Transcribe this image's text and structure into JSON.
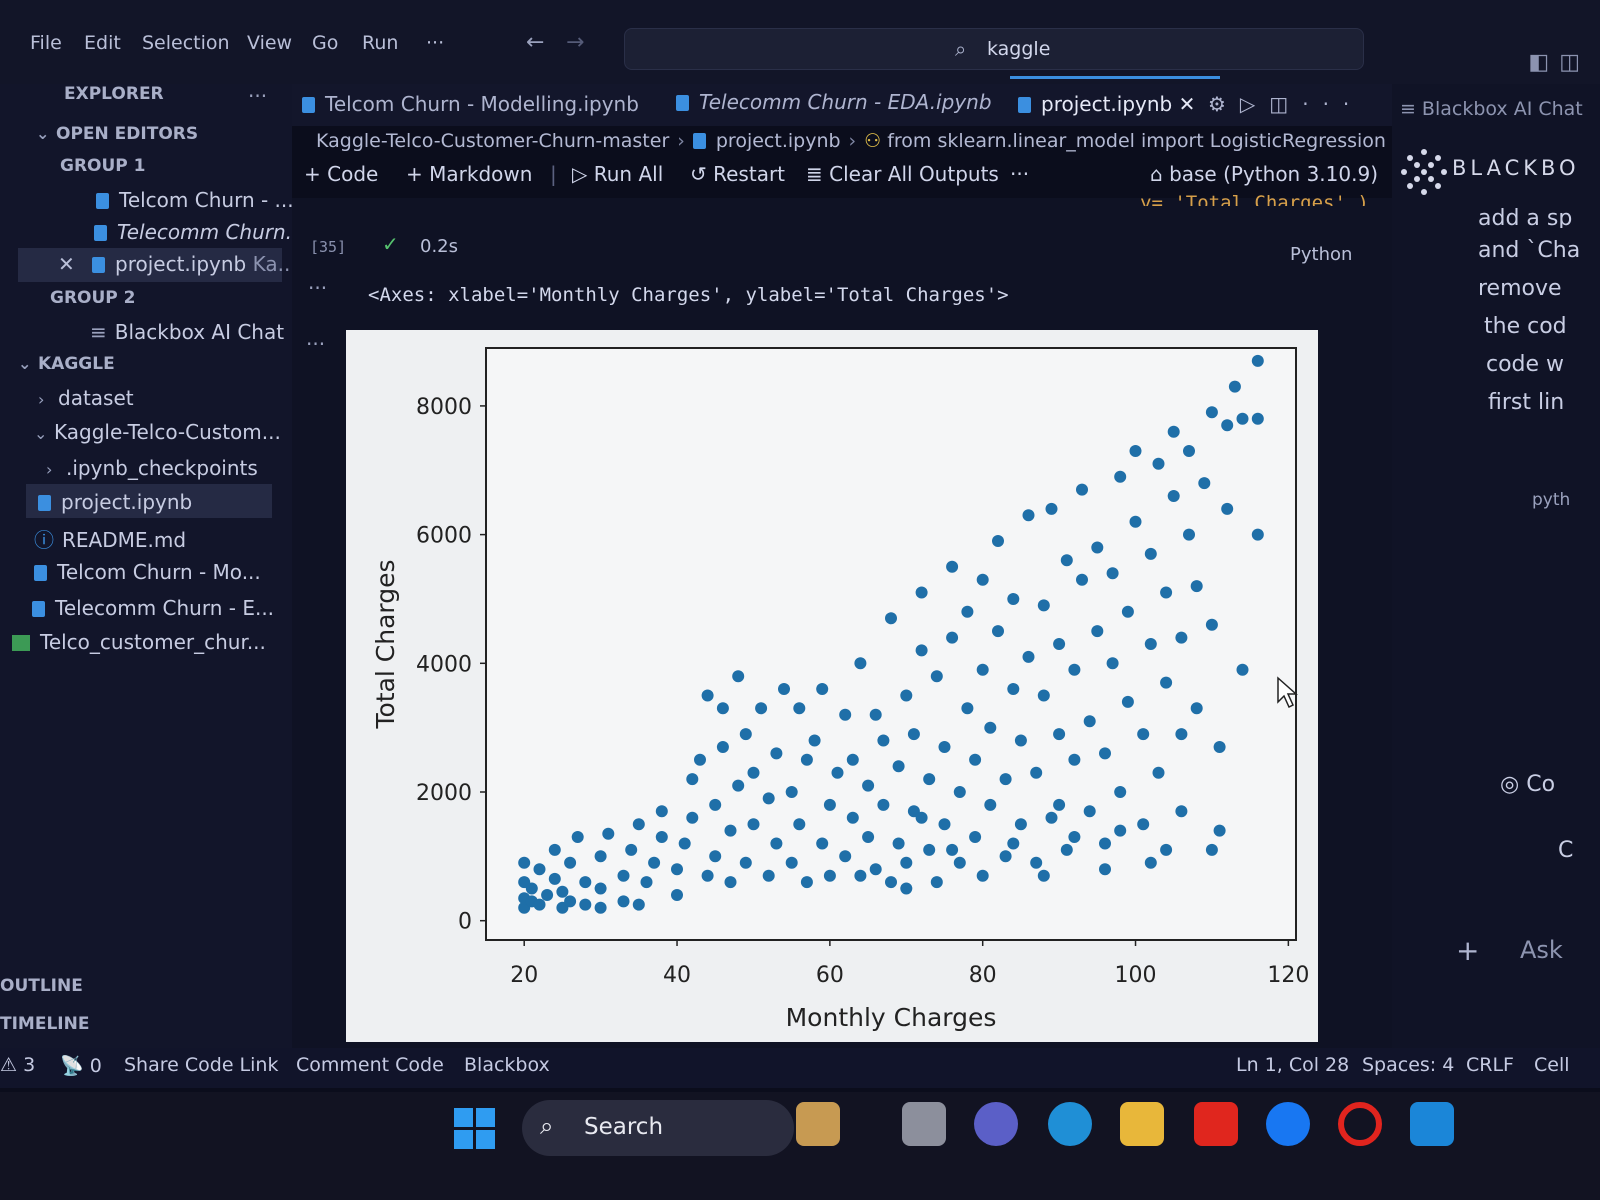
{
  "menu": [
    "File",
    "Edit",
    "Selection",
    "View",
    "Go",
    "Run",
    "···"
  ],
  "command_center": {
    "search_value": "kaggle"
  },
  "sidebar": {
    "title": "EXPLORER",
    "open_editors_label": "OPEN EDITORS",
    "group1_label": "GROUP 1",
    "group1_items": [
      "Telcom Churn - ...",
      "Telecomm Churn...",
      "project.ipynb",
      "Ka..."
    ],
    "group2_label": "GROUP 2",
    "group2_items": [
      "Blackbox AI Chat"
    ],
    "kaggle_label": "KAGGLE",
    "tree": [
      "dataset",
      "Kaggle-Telco-Custom...",
      ".ipynb_checkpoints",
      "project.ipynb",
      "README.md",
      "Telcom Churn - Mo...",
      "Telecomm Churn - E...",
      "Telco_customer_chur..."
    ],
    "outline_label": "OUTLINE",
    "timeline_label": "TIMELINE"
  },
  "tabs": [
    "Telcom Churn - Modelling.ipynb",
    "Telecomm Churn - EDA.ipynb",
    "project.ipynb"
  ],
  "breadcrumb": [
    "Kaggle-Telco-Customer-Churn-master",
    "project.ipynb",
    "from sklearn.linear_model import LogisticRegression"
  ],
  "toolbar": {
    "code": "Code",
    "markdown": "Markdown",
    "run_all": "Run All",
    "restart": "Restart",
    "clear_outputs": "Clear All Outputs",
    "more": "···",
    "kernel": "base (Python 3.10.9)"
  },
  "cell": {
    "count": "[35]",
    "time": "0.2s",
    "language": "Python",
    "output_repr": "<Axes: xlabel='Monthly Charges', ylabel='Total Charges'>",
    "truncated_code": "y= 'Total Charges' )"
  },
  "chart_data": {
    "type": "scatter",
    "xlabel": "Monthly Charges",
    "ylabel": "Total Charges",
    "xlim": [
      15,
      121
    ],
    "ylim": [
      -300,
      8900
    ],
    "xticks": [
      20,
      40,
      60,
      80,
      100,
      120
    ],
    "yticks": [
      0,
      2000,
      4000,
      6000,
      8000
    ],
    "color": "#1f6fa8",
    "points": [
      [
        20,
        200
      ],
      [
        20,
        350
      ],
      [
        20,
        600
      ],
      [
        20,
        900
      ],
      [
        21,
        300
      ],
      [
        21,
        500
      ],
      [
        22,
        250
      ],
      [
        22,
        800
      ],
      [
        23,
        400
      ],
      [
        24,
        650
      ],
      [
        24,
        1100
      ],
      [
        25,
        200
      ],
      [
        25,
        450
      ],
      [
        26,
        300
      ],
      [
        26,
        900
      ],
      [
        27,
        1300
      ],
      [
        28,
        250
      ],
      [
        28,
        600
      ],
      [
        30,
        200
      ],
      [
        30,
        500
      ],
      [
        30,
        1000
      ],
      [
        31,
        1350
      ],
      [
        33,
        300
      ],
      [
        33,
        700
      ],
      [
        34,
        1100
      ],
      [
        35,
        1500
      ],
      [
        35,
        250
      ],
      [
        36,
        600
      ],
      [
        37,
        900
      ],
      [
        38,
        1300
      ],
      [
        38,
        1700
      ],
      [
        40,
        400
      ],
      [
        40,
        800
      ],
      [
        41,
        1200
      ],
      [
        42,
        1600
      ],
      [
        42,
        2200
      ],
      [
        43,
        2500
      ],
      [
        44,
        700
      ],
      [
        44,
        3500
      ],
      [
        45,
        1000
      ],
      [
        45,
        1800
      ],
      [
        46,
        2700
      ],
      [
        46,
        3300
      ],
      [
        47,
        1400
      ],
      [
        47,
        600
      ],
      [
        48,
        2100
      ],
      [
        48,
        3800
      ],
      [
        49,
        900
      ],
      [
        49,
        2900
      ],
      [
        50,
        1500
      ],
      [
        50,
        2300
      ],
      [
        51,
        3300
      ],
      [
        52,
        700
      ],
      [
        52,
        1900
      ],
      [
        53,
        2600
      ],
      [
        53,
        1200
      ],
      [
        54,
        3600
      ],
      [
        55,
        2000
      ],
      [
        55,
        900
      ],
      [
        56,
        3300
      ],
      [
        56,
        1500
      ],
      [
        57,
        2500
      ],
      [
        57,
        600
      ],
      [
        58,
        2800
      ],
      [
        59,
        1200
      ],
      [
        59,
        3600
      ],
      [
        60,
        1800
      ],
      [
        60,
        700
      ],
      [
        61,
        2300
      ],
      [
        62,
        3200
      ],
      [
        62,
        1000
      ],
      [
        63,
        1600
      ],
      [
        63,
        2500
      ],
      [
        64,
        4000
      ],
      [
        64,
        700
      ],
      [
        65,
        1300
      ],
      [
        65,
        2100
      ],
      [
        66,
        3200
      ],
      [
        66,
        800
      ],
      [
        67,
        1800
      ],
      [
        67,
        2800
      ],
      [
        68,
        4700
      ],
      [
        68,
        600
      ],
      [
        69,
        1200
      ],
      [
        69,
        2400
      ],
      [
        70,
        3500
      ],
      [
        70,
        900
      ],
      [
        71,
        1700
      ],
      [
        71,
        2900
      ],
      [
        72,
        4200
      ],
      [
        72,
        5100
      ],
      [
        73,
        1100
      ],
      [
        73,
        2200
      ],
      [
        74,
        3800
      ],
      [
        74,
        600
      ],
      [
        75,
        1500
      ],
      [
        75,
        2700
      ],
      [
        76,
        4400
      ],
      [
        76,
        5500
      ],
      [
        77,
        900
      ],
      [
        77,
        2000
      ],
      [
        78,
        3300
      ],
      [
        78,
        4800
      ],
      [
        79,
        1300
      ],
      [
        79,
        2500
      ],
      [
        80,
        3900
      ],
      [
        80,
        5300
      ],
      [
        80,
        700
      ],
      [
        81,
        1800
      ],
      [
        81,
        3000
      ],
      [
        82,
        4500
      ],
      [
        82,
        5900
      ],
      [
        83,
        1000
      ],
      [
        83,
        2200
      ],
      [
        84,
        3600
      ],
      [
        84,
        5000
      ],
      [
        85,
        1500
      ],
      [
        85,
        2800
      ],
      [
        86,
        4100
      ],
      [
        86,
        6300
      ],
      [
        87,
        900
      ],
      [
        87,
        2300
      ],
      [
        88,
        3500
      ],
      [
        88,
        4900
      ],
      [
        89,
        6400
      ],
      [
        89,
        1600
      ],
      [
        90,
        2900
      ],
      [
        90,
        4300
      ],
      [
        91,
        5600
      ],
      [
        91,
        1100
      ],
      [
        92,
        2500
      ],
      [
        92,
        3900
      ],
      [
        93,
        5300
      ],
      [
        93,
        6700
      ],
      [
        94,
        1700
      ],
      [
        94,
        3100
      ],
      [
        95,
        4500
      ],
      [
        95,
        5800
      ],
      [
        96,
        1200
      ],
      [
        96,
        2600
      ],
      [
        97,
        4000
      ],
      [
        97,
        5400
      ],
      [
        98,
        6900
      ],
      [
        98,
        2000
      ],
      [
        99,
        3400
      ],
      [
        99,
        4800
      ],
      [
        100,
        6200
      ],
      [
        100,
        7300
      ],
      [
        101,
        1500
      ],
      [
        101,
        2900
      ],
      [
        102,
        4300
      ],
      [
        102,
        5700
      ],
      [
        103,
        7100
      ],
      [
        103,
        2300
      ],
      [
        104,
        3700
      ],
      [
        104,
        5100
      ],
      [
        105,
        6600
      ],
      [
        105,
        7600
      ],
      [
        106,
        2900
      ],
      [
        106,
        4400
      ],
      [
        107,
        6000
      ],
      [
        107,
        7300
      ],
      [
        108,
        5200
      ],
      [
        108,
        3300
      ],
      [
        109,
        6800
      ],
      [
        110,
        7900
      ],
      [
        110,
        4600
      ],
      [
        111,
        1400
      ],
      [
        111,
        2700
      ],
      [
        112,
        6400
      ],
      [
        112,
        7700
      ],
      [
        113,
        8300
      ],
      [
        114,
        3900
      ],
      [
        114,
        7800
      ],
      [
        116,
        6000
      ],
      [
        116,
        7800
      ],
      [
        116,
        8700
      ],
      [
        110,
        1100
      ],
      [
        88,
        700
      ],
      [
        96,
        800
      ],
      [
        92,
        1300
      ],
      [
        102,
        900
      ],
      [
        84,
        1200
      ],
      [
        76,
        1100
      ],
      [
        70,
        500
      ],
      [
        72,
        1600
      ],
      [
        90,
        1800
      ],
      [
        98,
        1400
      ],
      [
        104,
        1100
      ],
      [
        106,
        1700
      ]
    ]
  },
  "right_panel": {
    "title": "Blackbox AI Chat",
    "brand": "BLACKBO",
    "fragments": [
      "add a sp",
      "and `Cha",
      "remove",
      "the cod",
      "code w",
      "first lin",
      "pyth",
      "Co",
      "C"
    ],
    "ask": "Ask"
  },
  "statusbar": {
    "warnings": "3",
    "ports": "0",
    "share": "Share Code Link",
    "comment": "Comment Code",
    "blackbox": "Blackbox",
    "position": "Ln 1, Col 28",
    "spaces": "Spaces: 4",
    "eol": "CRLF",
    "cell": "Cell"
  },
  "taskbar": {
    "search": "Search"
  }
}
